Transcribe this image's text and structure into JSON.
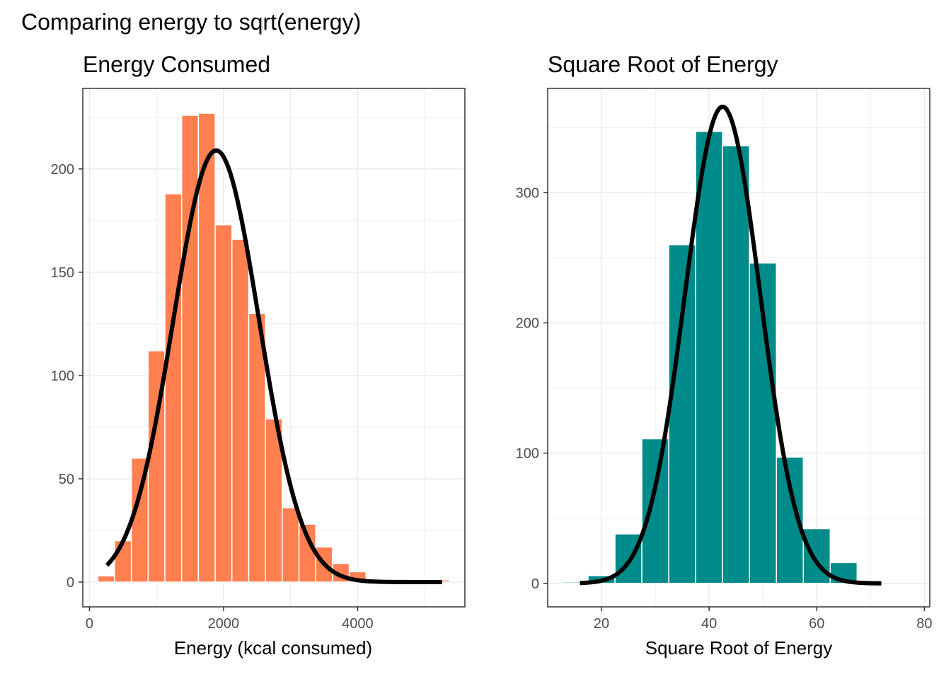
{
  "title": "Comparing energy to sqrt(energy)",
  "colors": {
    "left_fill": "#FF7F50",
    "right_fill": "#008B8B",
    "curve": "#000000",
    "grid": "#EBEBEB",
    "frame": "#333333"
  },
  "chart_data": [
    {
      "type": "bar",
      "title": "Energy Consumed",
      "xlabel": "Energy (kcal consumed)",
      "ylabel": "",
      "xlim": [
        -100,
        5600
      ],
      "ylim": [
        -12,
        239
      ],
      "xticks": [
        0,
        2000,
        4000
      ],
      "xtick_labels": [
        "0",
        "2000",
        "4000"
      ],
      "yticks": [
        0,
        50,
        100,
        150,
        200
      ],
      "ytick_labels": [
        "0",
        "50",
        "100",
        "150",
        "200"
      ],
      "grid": true,
      "binwidth": 250,
      "bin_centers": [
        250,
        500,
        750,
        1000,
        1250,
        1500,
        1750,
        2000,
        2250,
        2500,
        2750,
        3000,
        3250,
        3500,
        3750,
        4000,
        4250,
        4500,
        4750,
        5000,
        5250
      ],
      "counts": [
        3,
        20,
        60,
        112,
        188,
        226,
        227,
        173,
        166,
        130,
        79,
        36,
        28,
        17,
        9,
        5,
        0,
        0,
        0,
        0,
        1
      ],
      "normal_curve": {
        "mean": 1890,
        "sd": 640,
        "peak": 209,
        "x_range": [
          260,
          5260
        ]
      }
    },
    {
      "type": "bar",
      "title": "Square Root of Energy",
      "xlabel": "Square Root of Energy",
      "ylabel": "",
      "xlim": [
        10,
        81
      ],
      "ylim": [
        -18,
        380
      ],
      "xticks": [
        20,
        40,
        60,
        80
      ],
      "xtick_labels": [
        "20",
        "40",
        "60",
        "80"
      ],
      "yticks": [
        0,
        100,
        200,
        300
      ],
      "ytick_labels": [
        "0",
        "100",
        "200",
        "300"
      ],
      "grid": true,
      "binwidth": 5,
      "bin_centers": [
        15,
        20,
        25,
        30,
        35,
        40,
        45,
        50,
        55,
        60,
        65
      ],
      "counts": [
        1,
        6,
        38,
        111,
        260,
        347,
        336,
        246,
        97,
        42,
        16
      ],
      "normal_curve": {
        "mean": 42.5,
        "sd": 7.0,
        "peak": 366,
        "x_range": [
          16,
          72
        ]
      }
    }
  ]
}
